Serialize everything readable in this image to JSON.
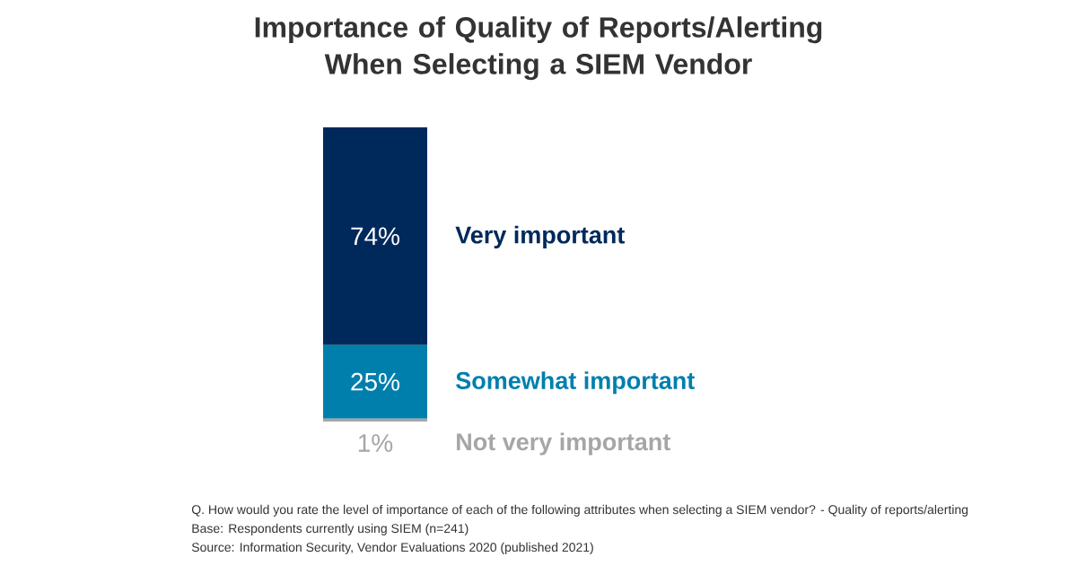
{
  "chart_data": {
    "type": "bar",
    "title": "Importance of Quality of Reports/Alerting When Selecting a SIEM Vendor",
    "categories": [
      null
    ],
    "stacked": true,
    "series": [
      {
        "name": "Not very important",
        "color": "#a6a6a6",
        "values": [
          1
        ],
        "value_labels": [
          "1%"
        ]
      },
      {
        "name": "Somewhat important",
        "color": "#007fad",
        "values": [
          25
        ],
        "value_labels": [
          "25%"
        ]
      },
      {
        "name": "Very important",
        "color": "#00295b",
        "values": [
          74
        ],
        "value_labels": [
          "74%"
        ]
      }
    ],
    "annotations": [
      "Q. How would you rate the level of importance of each of the following attributes when selecting a SIEM vendor? - Quality of reports/alerting",
      "Base: Respondents currently using SIEM (n=241)",
      "Source: Information Security, Vendor Evaluations 2020 (published 2021)"
    ]
  }
}
